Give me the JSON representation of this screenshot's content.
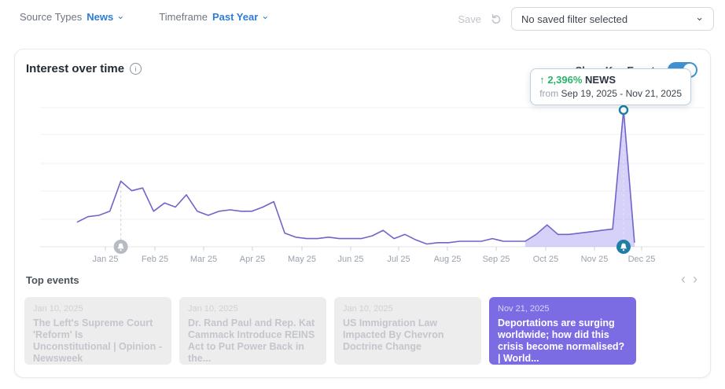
{
  "topbar": {
    "source_types_label": "Source Types",
    "source_types_value": "News",
    "timeframe_label": "Timeframe",
    "timeframe_value": "Past Year",
    "save_label": "Save",
    "filter_select_value": "No saved filter selected"
  },
  "panel": {
    "title": "Interest over time",
    "show_key_events_label": "Show Key Events",
    "show_key_events_on": true
  },
  "tooltip": {
    "arrow": "↑",
    "change_pct": "2,396%",
    "series_name": "NEWS",
    "from_label": "from",
    "date_range": "Sep 19, 2025 - Nov 21, 2025"
  },
  "chart_data": {
    "type": "line",
    "title": "Interest over time",
    "series": [
      {
        "name": "NEWS",
        "cadence": "weekly",
        "values": [
          18,
          22,
          23,
          26,
          48,
          41,
          43,
          26,
          32,
          29,
          38,
          26,
          23,
          26,
          27,
          26,
          26,
          29,
          33,
          10,
          7,
          6,
          6,
          7,
          6,
          6,
          6,
          8,
          12,
          6,
          9,
          5,
          2,
          3,
          3,
          4,
          4,
          4,
          6,
          4,
          4,
          4,
          9,
          16,
          9,
          9,
          10,
          11,
          12,
          13,
          100,
          3
        ]
      }
    ],
    "x_tick_labels": [
      "Jan 25",
      "Feb 25",
      "Mar 25",
      "Apr 25",
      "May 25",
      "Jun 25",
      "Jul 25",
      "Aug 25",
      "Sep 25",
      "Oct 25",
      "Nov 25",
      "Dec 25"
    ],
    "y_range": [
      0,
      100
    ],
    "grid": "horizontal",
    "legend": "none",
    "line_color": "#6f65c9",
    "fill_color": "#7c6fe8",
    "annotations": [
      {
        "type": "key-event",
        "index": 4,
        "date": "Jan 10, 2025",
        "style": "past"
      },
      {
        "type": "key-event",
        "index": 50,
        "date": "Nov 21, 2025",
        "style": "active"
      }
    ],
    "highlight_region": {
      "start_index": 41,
      "end_index": 51,
      "from": "Sep 19, 2025",
      "to": "Nov 21, 2025"
    }
  },
  "top_events": {
    "title": "Top events",
    "nav_prev": "‹",
    "nav_next": "›",
    "cards": [
      {
        "date": "Jan 10, 2025",
        "title": "The Left's Supreme Court 'Reform' Is Unconstitutional | Opinion - Newsweek",
        "highlighted": false
      },
      {
        "date": "Jan 10, 2025",
        "title": "Dr. Rand Paul and Rep. Kat Cammack Introduce REINS Act to Put Power Back in the...",
        "highlighted": false
      },
      {
        "date": "Jan 10, 2025",
        "title": "US Immigration Law Impacted By Chevron Doctrine Change",
        "highlighted": false
      },
      {
        "date": "Nov 21, 2025",
        "title": "Deportations are surging worldwide; how did this crisis become normalised? | World...",
        "highlighted": true
      }
    ]
  },
  "colors": {
    "accent_blue": "#2e7cd6",
    "toggle_blue": "#3f92d2",
    "line_purple": "#6f65c9",
    "event_purple": "#7b6ce4",
    "key_event_teal": "#1e7ea6",
    "green": "#27b56a"
  }
}
